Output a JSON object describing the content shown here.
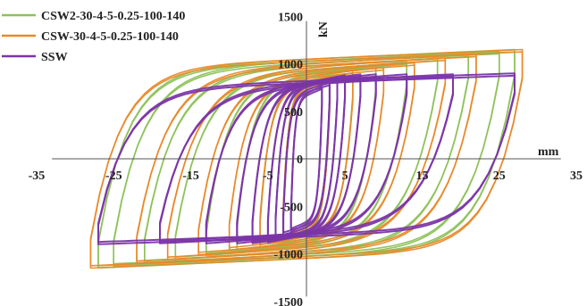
{
  "chart_data": {
    "type": "line",
    "title": "",
    "xlabel": "mm",
    "ylabel": "kN",
    "xlim": [
      -35,
      35
    ],
    "ylim": [
      -1500,
      1500
    ],
    "x_ticks": [
      "-35",
      "-25",
      "-15",
      "-5",
      "5",
      "15",
      "25",
      "35"
    ],
    "y_ticks": [
      "1500",
      "1000",
      "500",
      "0",
      "-500",
      "-1000",
      "-1500"
    ],
    "grid": false,
    "legend_position": "top-left",
    "series": [
      {
        "name": "CSW2-30-4-5-0.25-100-140",
        "color": "#8dc25a",
        "loops": [
          {
            "amplitude": 3,
            "peak_force": 860,
            "yield": 560
          },
          {
            "amplitude": 6,
            "peak_force": 930,
            "yield": 660
          },
          {
            "amplitude": 9,
            "peak_force": 980,
            "yield": 740
          },
          {
            "amplitude": 13,
            "peak_force": 1020,
            "yield": 790
          },
          {
            "amplitude": 17,
            "peak_force": 1060,
            "yield": 830
          },
          {
            "amplitude": 21,
            "peak_force": 1100,
            "yield": 860
          },
          {
            "amplitude": 25,
            "peak_force": 1130,
            "yield": 880
          },
          {
            "amplitude": 27,
            "peak_force": 1150,
            "yield": 890
          }
        ]
      },
      {
        "name": "CSW-30-4-5-0.25-100-140",
        "color": "#e8892a",
        "loops": [
          {
            "amplitude": 3,
            "peak_force": 830,
            "yield": 520
          },
          {
            "amplitude": 6,
            "peak_force": 900,
            "yield": 620
          },
          {
            "amplitude": 10,
            "peak_force": 960,
            "yield": 700
          },
          {
            "amplitude": 14,
            "peak_force": 1010,
            "yield": 760
          },
          {
            "amplitude": 18,
            "peak_force": 1060,
            "yield": 800
          },
          {
            "amplitude": 22,
            "peak_force": 1100,
            "yield": 830
          },
          {
            "amplitude": 28,
            "peak_force": 1150,
            "yield": 860
          }
        ]
      },
      {
        "name": "SSW",
        "color": "#7b35a8",
        "loops": [
          {
            "amplitude": 2,
            "peak_force": 760,
            "yield": 580
          },
          {
            "amplitude": 3,
            "peak_force": 800,
            "yield": 620
          },
          {
            "amplitude": 4,
            "peak_force": 860,
            "yield": 640
          },
          {
            "amplitude": 5,
            "peak_force": 880,
            "yield": 660
          },
          {
            "amplitude": 7,
            "peak_force": 890,
            "yield": 670
          },
          {
            "amplitude": 9,
            "peak_force": 890,
            "yield": 680
          },
          {
            "amplitude": 13,
            "peak_force": 890,
            "yield": 690
          },
          {
            "amplitude": 19,
            "peak_force": 890,
            "yield": 690
          },
          {
            "amplitude": 27,
            "peak_force": 900,
            "yield": 700
          }
        ]
      }
    ]
  }
}
